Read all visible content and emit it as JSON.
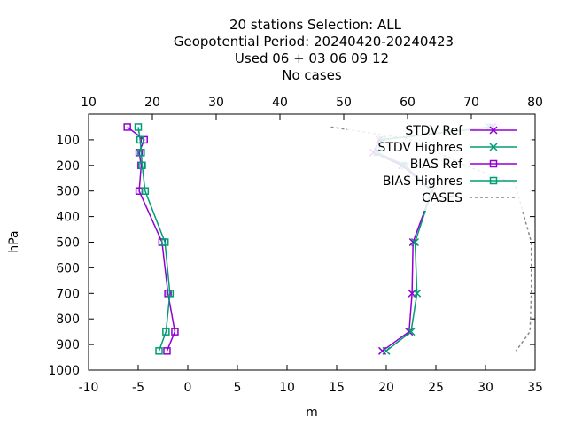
{
  "titles": [
    "20 stations Selection: ALL",
    "Geopotential  Period: 20240420-20240423",
    "Used  06 + 03 06 09 12",
    "No cases"
  ],
  "chart_data": {
    "type": "line",
    "xlabel": "m",
    "ylabel": "hPa",
    "xlim": [
      -10,
      35
    ],
    "x2lim": [
      10,
      80
    ],
    "ylim": [
      1000,
      0
    ],
    "y_reversed": true,
    "xticks": [
      -10,
      -5,
      0,
      5,
      10,
      15,
      20,
      25,
      30,
      35
    ],
    "x2ticks": [
      10,
      20,
      30,
      40,
      50,
      60,
      70,
      80
    ],
    "yticks": [
      100,
      200,
      300,
      400,
      500,
      600,
      700,
      800,
      900,
      1000
    ],
    "levels": [
      50,
      100,
      150,
      200,
      300,
      500,
      700,
      850,
      925
    ],
    "series": [
      {
        "name": "STDV Ref",
        "color": "#9400d3",
        "marker": "x",
        "axis": "x1",
        "x": [
          30.7,
          19.3,
          18.7,
          21.6,
          24.6,
          22.7,
          22.6,
          22.3,
          19.6
        ]
      },
      {
        "name": "STDV Highres",
        "color": "#009e73",
        "marker": "x",
        "axis": "x1",
        "x": [
          30.4,
          19.6,
          19.1,
          21.9,
          24.6,
          22.9,
          23.1,
          22.5,
          20.0
        ]
      },
      {
        "name": "BIAS Ref",
        "color": "#9400d3",
        "marker": "square",
        "axis": "x1",
        "x": [
          -6.1,
          -4.4,
          -4.9,
          -4.7,
          -4.9,
          -2.6,
          -2.0,
          -1.3,
          -2.1
        ]
      },
      {
        "name": "BIAS Highres",
        "color": "#009e73",
        "marker": "square",
        "axis": "x1",
        "x": [
          -5.0,
          -4.8,
          -4.7,
          -4.6,
          -4.3,
          -2.3,
          -1.8,
          -2.2,
          -2.9
        ]
      },
      {
        "name": "CASES",
        "color": "#888888",
        "marker": "none",
        "dashed": true,
        "axis": "x2",
        "x": [
          48.0,
          60.0,
          70.0,
          76.8,
          77.5,
          79.4,
          79.4,
          79.2,
          77.0
        ],
        "y": [
          50,
          95,
          210,
          270,
          330,
          500,
          700,
          850,
          925
        ]
      }
    ],
    "grid": false,
    "legend_position": "top-right"
  }
}
